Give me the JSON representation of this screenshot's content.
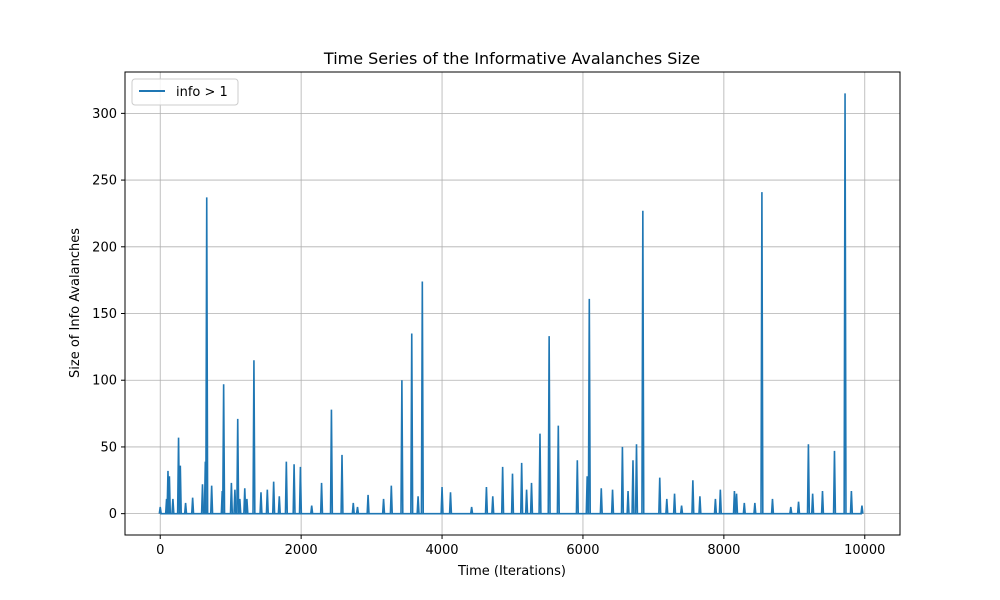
{
  "chart_data": {
    "type": "line",
    "title": "Time Series of the Informative Avalanches Size",
    "xlabel": "Time (Iterations)",
    "ylabel": "Size of Info Avalanches",
    "xlim": [
      -500,
      10500
    ],
    "ylim": [
      -16,
      331
    ],
    "x_ticks": [
      0,
      2000,
      4000,
      6000,
      8000,
      10000
    ],
    "y_ticks": [
      0,
      50,
      100,
      150,
      200,
      250,
      300
    ],
    "grid": true,
    "legend_position": "top-left",
    "series": [
      {
        "name": "info > 1",
        "color": "#1f77b4",
        "points": [
          [
            0,
            5
          ],
          [
            90,
            11
          ],
          [
            110,
            32
          ],
          [
            130,
            28
          ],
          [
            180,
            11
          ],
          [
            260,
            57
          ],
          [
            285,
            36
          ],
          [
            360,
            8
          ],
          [
            460,
            12
          ],
          [
            600,
            22
          ],
          [
            640,
            39
          ],
          [
            660,
            237
          ],
          [
            730,
            21
          ],
          [
            880,
            17
          ],
          [
            900,
            97
          ],
          [
            1010,
            23
          ],
          [
            1060,
            18
          ],
          [
            1100,
            71
          ],
          [
            1130,
            11
          ],
          [
            1200,
            19
          ],
          [
            1230,
            11
          ],
          [
            1330,
            115
          ],
          [
            1430,
            16
          ],
          [
            1520,
            18
          ],
          [
            1610,
            24
          ],
          [
            1690,
            13
          ],
          [
            1790,
            39
          ],
          [
            1900,
            37
          ],
          [
            1990,
            35
          ],
          [
            2150,
            6
          ],
          [
            2290,
            23
          ],
          [
            2430,
            78
          ],
          [
            2580,
            44
          ],
          [
            2740,
            8
          ],
          [
            2800,
            5
          ],
          [
            2950,
            14
          ],
          [
            3170,
            11
          ],
          [
            3280,
            21
          ],
          [
            3430,
            100
          ],
          [
            3570,
            135
          ],
          [
            3660,
            13
          ],
          [
            3720,
            174
          ],
          [
            4000,
            20
          ],
          [
            4120,
            16
          ],
          [
            4420,
            5
          ],
          [
            4630,
            20
          ],
          [
            4720,
            13
          ],
          [
            4860,
            35
          ],
          [
            5000,
            30
          ],
          [
            5130,
            38
          ],
          [
            5200,
            18
          ],
          [
            5270,
            23
          ],
          [
            5390,
            60
          ],
          [
            5520,
            133
          ],
          [
            5650,
            66
          ],
          [
            5920,
            40
          ],
          [
            6060,
            28
          ],
          [
            6090,
            161
          ],
          [
            6260,
            19
          ],
          [
            6420,
            18
          ],
          [
            6560,
            50
          ],
          [
            6640,
            17
          ],
          [
            6710,
            40
          ],
          [
            6760,
            52
          ],
          [
            6850,
            227
          ],
          [
            7090,
            27
          ],
          [
            7190,
            11
          ],
          [
            7300,
            15
          ],
          [
            7400,
            6
          ],
          [
            7560,
            25
          ],
          [
            7660,
            13
          ],
          [
            7880,
            11
          ],
          [
            7950,
            18
          ],
          [
            8150,
            17
          ],
          [
            8180,
            15
          ],
          [
            8290,
            8
          ],
          [
            8440,
            8
          ],
          [
            8540,
            241
          ],
          [
            8690,
            11
          ],
          [
            8950,
            5
          ],
          [
            9060,
            9
          ],
          [
            9200,
            52
          ],
          [
            9260,
            15
          ],
          [
            9400,
            17
          ],
          [
            9570,
            47
          ],
          [
            9720,
            315
          ],
          [
            9810,
            17
          ],
          [
            9960,
            6
          ]
        ]
      }
    ]
  }
}
